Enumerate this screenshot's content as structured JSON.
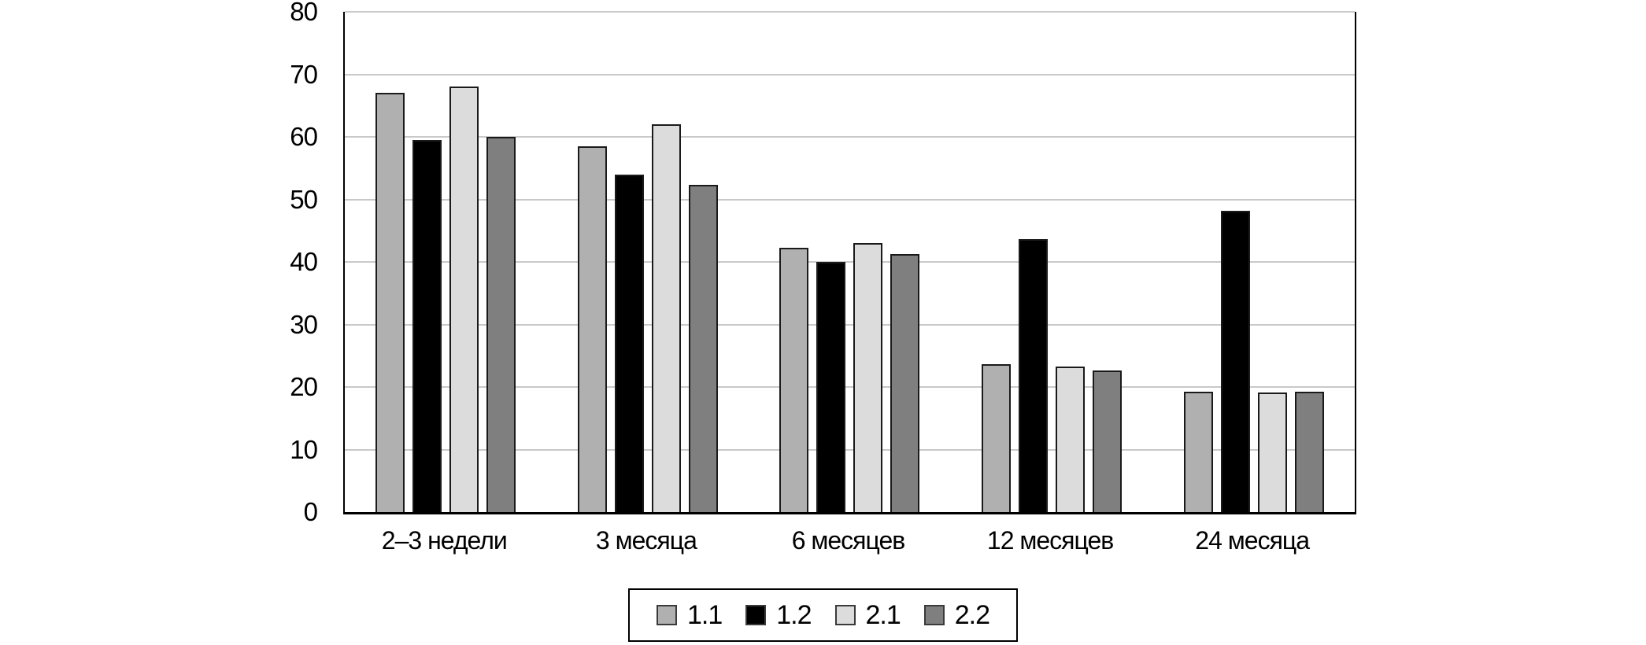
{
  "chart_data": {
    "type": "bar",
    "title": "",
    "xlabel": "",
    "ylabel": "",
    "categories": [
      "2–3 недели",
      "3 месяца",
      "6 месяцев",
      "12 месяцев",
      "24 месяца"
    ],
    "series": [
      {
        "name": "1.1",
        "color": "#b0b0b0",
        "values": [
          67,
          58.5,
          42.3,
          23.6,
          19.3
        ]
      },
      {
        "name": "1.2",
        "color": "#000000",
        "values": [
          59.5,
          54,
          40,
          43.7,
          48.2
        ]
      },
      {
        "name": "2.1",
        "color": "#dcdcdc",
        "values": [
          68,
          62,
          43,
          23.3,
          19.1
        ]
      },
      {
        "name": "2.2",
        "color": "#7f7f7f",
        "values": [
          60,
          52.3,
          41.2,
          22.7,
          19.3
        ]
      }
    ],
    "ylim": [
      0,
      80
    ],
    "yticks": [
      0,
      10,
      20,
      30,
      40,
      50,
      60,
      70,
      80
    ],
    "grid": true,
    "legend_position": "bottom",
    "legend_labels": [
      "1.1",
      "1.2",
      "2.1",
      "2.2"
    ],
    "gridline_color": "#c9c9c9",
    "axis_color": "#000000",
    "bar_border_color": "#1a1a1a",
    "background_color": "#ffffff"
  }
}
